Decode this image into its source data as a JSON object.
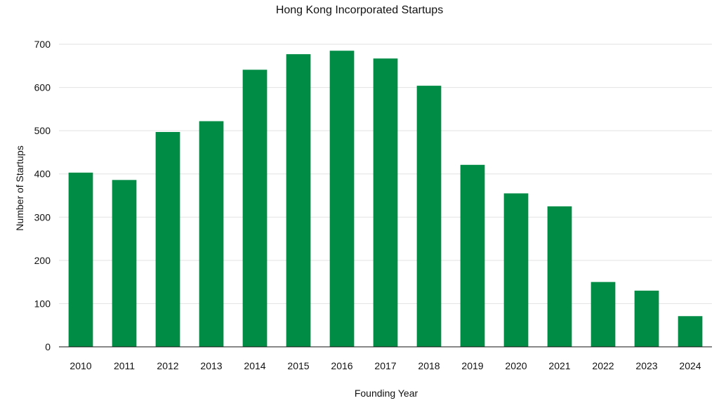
{
  "chart_data": {
    "type": "bar",
    "title": "Hong Kong Incorporated Startups",
    "xlabel": "Founding Year",
    "ylabel": "Number of Startups",
    "categories": [
      "2010",
      "2011",
      "2012",
      "2013",
      "2014",
      "2015",
      "2016",
      "2017",
      "2018",
      "2019",
      "2020",
      "2021",
      "2022",
      "2023",
      "2024"
    ],
    "series": [
      {
        "values": [
          403,
          386,
          497,
          522,
          641,
          677,
          685,
          667,
          604,
          421,
          355,
          325,
          150,
          130,
          71
        ]
      }
    ],
    "ylim": [
      0,
      700
    ],
    "yticks": [
      0,
      100,
      200,
      300,
      400,
      500,
      600,
      700
    ],
    "grid": true,
    "legend": "none",
    "colors": {
      "bar": "#008C45",
      "grid": "#E2E2E2",
      "text": "#111111"
    }
  }
}
